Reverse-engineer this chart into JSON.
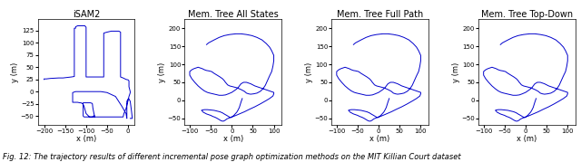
{
  "titles": [
    "iSAM2",
    "Mem. Tree All States",
    "Mem. Tree Full Path",
    "Mem. Tree Top-Down"
  ],
  "xlabel": "x (m)",
  "ylabel": "y (m)",
  "line_color": "#0000cc",
  "line_width": 0.7,
  "caption": "Fig. 12: The trajectory results of different incremental pose graph optimization methods on the MIT Killian Court dataset",
  "caption_fontsize": 6.0,
  "title_fontsize": 7.0,
  "tick_fontsize": 5.0,
  "label_fontsize": 6.0,
  "subplot1": {
    "xlim": [
      -215,
      15
    ],
    "ylim": [
      -68,
      148
    ],
    "xticks": [
      -200,
      -150,
      -100,
      -50,
      0
    ],
    "yticks": [
      -50,
      -25,
      0,
      25,
      50,
      75,
      100,
      125
    ]
  },
  "subplot2": {
    "xlim": [
      -112,
      118
    ],
    "ylim": [
      -68,
      225
    ],
    "xticks": [
      -100,
      -50,
      0,
      50,
      100
    ],
    "yticks": [
      -50,
      0,
      50,
      100,
      150,
      200
    ]
  },
  "subplot3": {
    "xlim": [
      -112,
      118
    ],
    "ylim": [
      -68,
      225
    ],
    "xticks": [
      -100,
      -50,
      0,
      50,
      100
    ],
    "yticks": [
      -50,
      0,
      50,
      100,
      150,
      200
    ]
  },
  "subplot4": {
    "xlim": [
      -112,
      118
    ],
    "ylim": [
      -68,
      225
    ],
    "xticks": [
      -100,
      -50,
      0,
      50,
      100
    ],
    "yticks": [
      -50,
      0,
      50,
      100,
      150,
      200
    ]
  },
  "isam2_x": [
    -200,
    -200,
    -195,
    -185,
    -165,
    -155,
    -145,
    -135,
    -128,
    -128,
    -128,
    -128,
    -125,
    -125,
    -120,
    -110,
    -105,
    -103,
    -100,
    -100,
    -100,
    -95,
    -80,
    -65,
    -60,
    -58,
    -58,
    -58,
    -50,
    -40,
    -30,
    -22,
    -18,
    -18,
    -18,
    -12,
    -5,
    0,
    2,
    2,
    5,
    5,
    4,
    2,
    0,
    -2,
    -5,
    -10,
    -12,
    -12,
    -15,
    -20,
    -30,
    -40,
    -50,
    -60,
    -70,
    -80,
    -80,
    -82,
    -84,
    -85,
    -86,
    -90,
    -95,
    -100,
    -105,
    -107,
    -107,
    -108,
    -105,
    -100,
    -92,
    -85,
    -82,
    -80,
    -80,
    -82,
    -85,
    -90,
    -95,
    -100,
    -105,
    -107,
    -107,
    -110,
    -112,
    -115,
    -120,
    -125,
    -128,
    -130,
    -132,
    -132,
    -132,
    -125,
    -110,
    -95,
    -80,
    -65,
    -50,
    -30,
    -15,
    -5,
    -3,
    -3,
    -3,
    0,
    2,
    5,
    8,
    10,
    5
  ],
  "isam2_y": [
    25,
    26,
    26,
    27,
    28,
    28,
    29,
    30,
    31,
    50,
    90,
    130,
    130,
    133,
    135,
    135,
    135,
    135,
    132,
    90,
    30,
    30,
    30,
    30,
    30,
    30,
    60,
    120,
    122,
    124,
    124,
    124,
    122,
    80,
    30,
    28,
    25,
    24,
    22,
    10,
    0,
    -2,
    -5,
    -10,
    -18,
    -25,
    -35,
    -45,
    -52,
    -52,
    -52,
    -52,
    -52,
    -52,
    -52,
    -52,
    -52,
    -52,
    -50,
    -42,
    -33,
    -25,
    -24,
    -23,
    -23,
    -23,
    -23,
    -23,
    -23,
    -25,
    -30,
    -45,
    -52,
    -52,
    -50,
    -50,
    -52,
    -52,
    -52,
    -52,
    -52,
    -52,
    -52,
    -50,
    -25,
    -24,
    -23,
    -23,
    -22,
    -22,
    -22,
    -22,
    -22,
    -22,
    -2,
    0,
    0,
    0,
    0,
    0,
    -2,
    -10,
    -30,
    -45,
    -55,
    -52,
    -20,
    -15,
    -15,
    -20,
    -40,
    -55,
    -55
  ],
  "mem_x": [
    -60,
    -55,
    -42,
    -30,
    -18,
    -5,
    10,
    22,
    35,
    48,
    60,
    72,
    82,
    90,
    95,
    100,
    100,
    98,
    95,
    90,
    85,
    80,
    75,
    68,
    60,
    52,
    45,
    40,
    35,
    30,
    22,
    12,
    2,
    -5,
    -10,
    -12,
    -15,
    -18,
    -22,
    -28,
    -35,
    -42,
    -48,
    -55,
    -60,
    -65,
    -70,
    -75,
    -80,
    -85,
    -90,
    -95,
    -100,
    -100,
    -100,
    -95,
    -88,
    -80,
    -72,
    -65,
    -58,
    -52,
    -45,
    -38,
    -30,
    -22,
    -15,
    -8,
    0,
    5,
    10,
    15,
    18,
    20,
    22,
    25,
    28,
    30,
    35,
    40,
    45,
    50,
    55,
    60,
    65,
    70,
    75,
    80,
    85,
    90,
    95,
    100,
    100,
    98,
    90,
    80,
    68,
    55,
    42,
    30,
    18,
    8,
    -2,
    -8,
    -12,
    -15,
    -18,
    -20,
    -22,
    -25,
    -28,
    -32,
    -35,
    -40,
    -45,
    -50,
    -55,
    -60,
    -65,
    -68,
    -70,
    -72,
    -70,
    -65,
    -58,
    -50,
    -42,
    -35,
    -28,
    -22,
    -18,
    -12,
    -8,
    -5,
    -2,
    0,
    2,
    5,
    8,
    12,
    15,
    18,
    20,
    22,
    25
  ],
  "mem_y": [
    155,
    160,
    168,
    175,
    180,
    183,
    185,
    185,
    183,
    180,
    175,
    168,
    158,
    148,
    138,
    125,
    110,
    95,
    80,
    68,
    55,
    42,
    33,
    25,
    20,
    18,
    17,
    18,
    20,
    25,
    30,
    35,
    38,
    40,
    43,
    46,
    50,
    55,
    60,
    65,
    70,
    75,
    80,
    82,
    83,
    85,
    88,
    90,
    92,
    90,
    88,
    85,
    80,
    75,
    70,
    60,
    50,
    40,
    32,
    26,
    22,
    20,
    18,
    16,
    14,
    14,
    15,
    18,
    22,
    26,
    30,
    35,
    40,
    43,
    46,
    48,
    50,
    50,
    50,
    48,
    46,
    43,
    40,
    38,
    36,
    34,
    32,
    30,
    28,
    26,
    24,
    22,
    18,
    12,
    5,
    -2,
    -10,
    -18,
    -25,
    -32,
    -38,
    -43,
    -47,
    -50,
    -52,
    -55,
    -57,
    -58,
    -58,
    -57,
    -55,
    -52,
    -50,
    -47,
    -45,
    -42,
    -40,
    -38,
    -35,
    -33,
    -30,
    -28,
    -27,
    -26,
    -26,
    -27,
    -28,
    -30,
    -32,
    -35,
    -38,
    -42,
    -45,
    -47,
    -48,
    -47,
    -45,
    -42,
    -38,
    -33,
    -27,
    -20,
    -12,
    -5,
    5
  ]
}
